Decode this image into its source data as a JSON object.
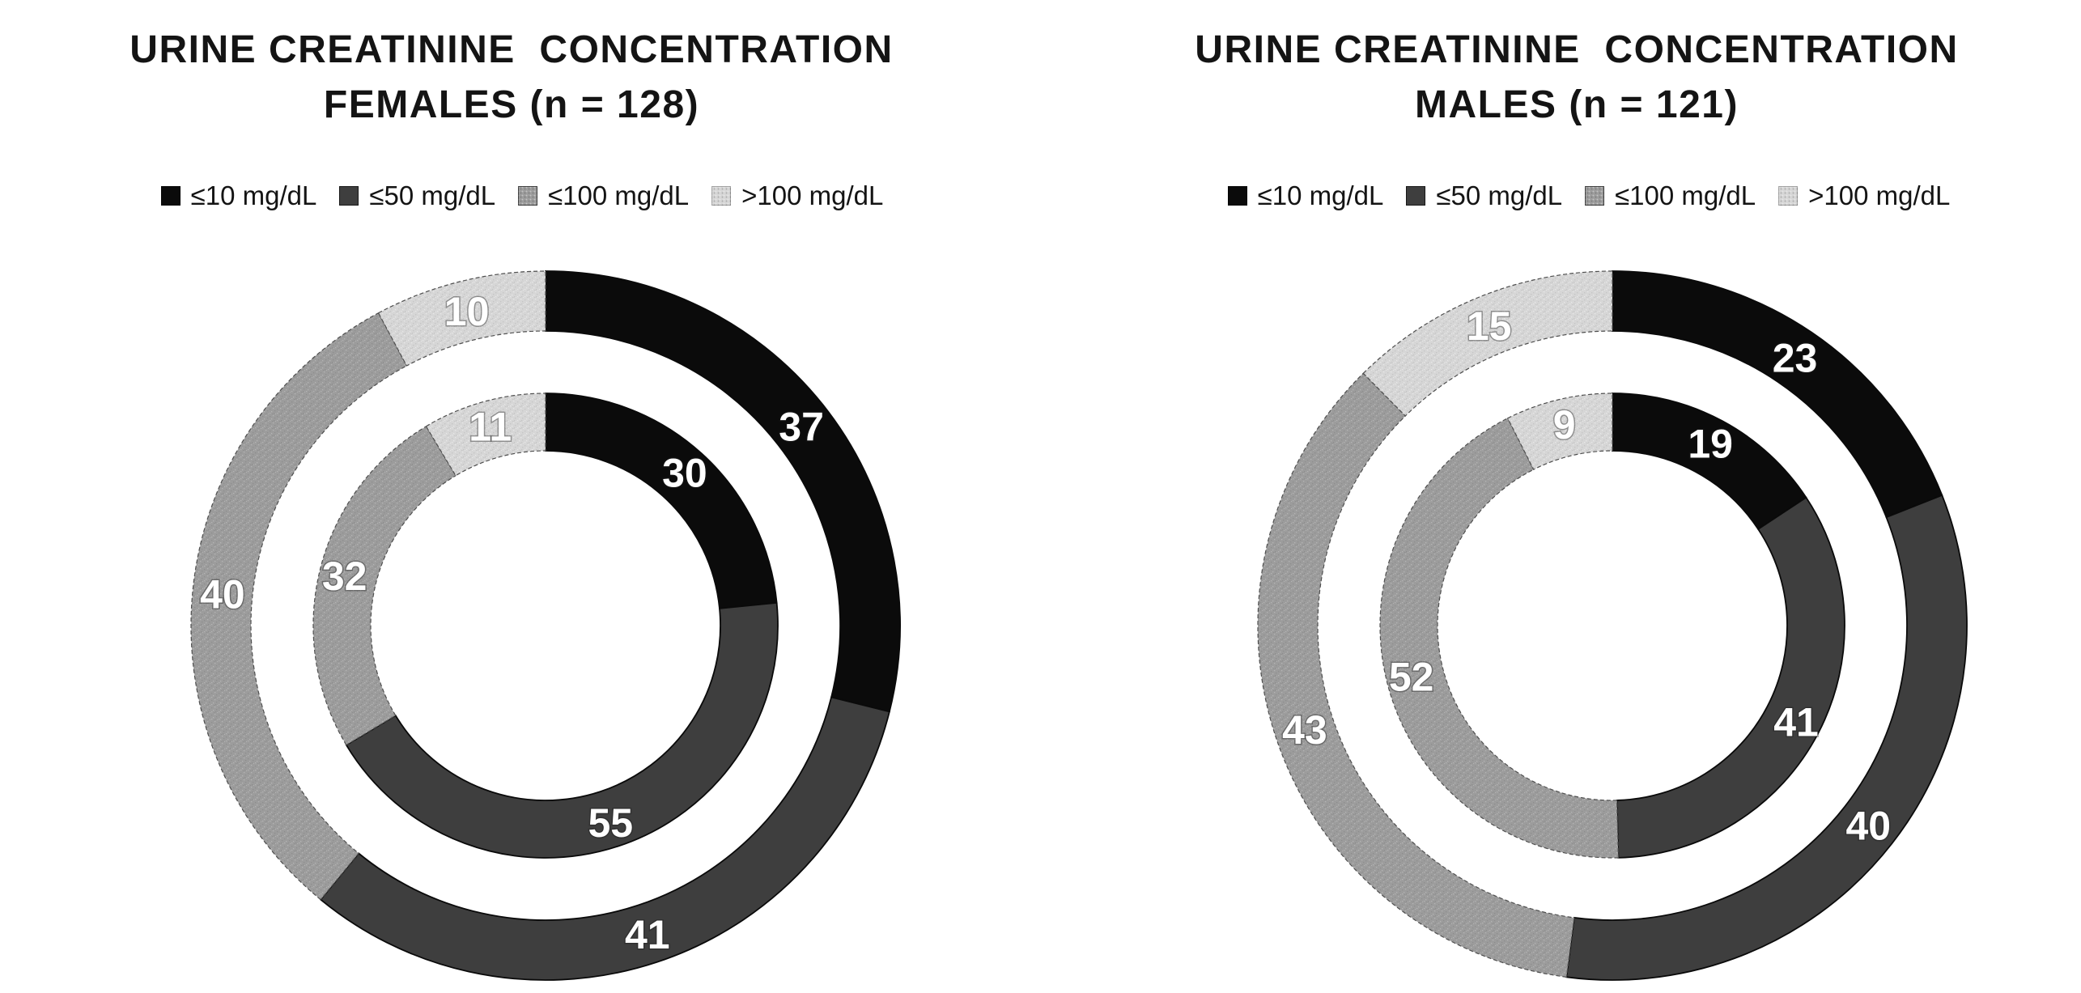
{
  "figure": {
    "background": "#ffffff",
    "title_text_color": "#141414",
    "value_label_color": "#ffffff"
  },
  "category_colors": [
    "#0b0b0b",
    "#3e3e3e",
    "#9c9c9c",
    "#d6d6d6"
  ],
  "chart_data": [
    {
      "type": "pie",
      "variant": "double-ring donut",
      "title": "URINE CREATININE  CONCENTRATION",
      "subtitle": "FEMALES (n = 128)",
      "n": 128,
      "legend_position": "top",
      "direction": "clockwise",
      "start_angle_deg": 0,
      "categories": [
        "≤10 mg/dL",
        "≤50 mg/dL",
        "≤100 mg/dL",
        ">100 mg/dL"
      ],
      "series": [
        {
          "name": "outer_ring",
          "values": [
            37,
            41,
            40,
            10
          ]
        },
        {
          "name": "inner_ring",
          "values": [
            30,
            55,
            32,
            11
          ]
        }
      ]
    },
    {
      "type": "pie",
      "variant": "double-ring donut",
      "title": "URINE CREATININE  CONCENTRATION",
      "subtitle": "MALES (n = 121)",
      "n": 121,
      "legend_position": "top",
      "direction": "clockwise",
      "start_angle_deg": 0,
      "categories": [
        "≤10 mg/dL",
        "≤50 mg/dL",
        "≤100 mg/dL",
        ">100 mg/dL"
      ],
      "series": [
        {
          "name": "outer_ring",
          "values": [
            23,
            40,
            43,
            15
          ]
        },
        {
          "name": "inner_ring",
          "values": [
            19,
            41,
            52,
            9
          ]
        }
      ]
    }
  ]
}
